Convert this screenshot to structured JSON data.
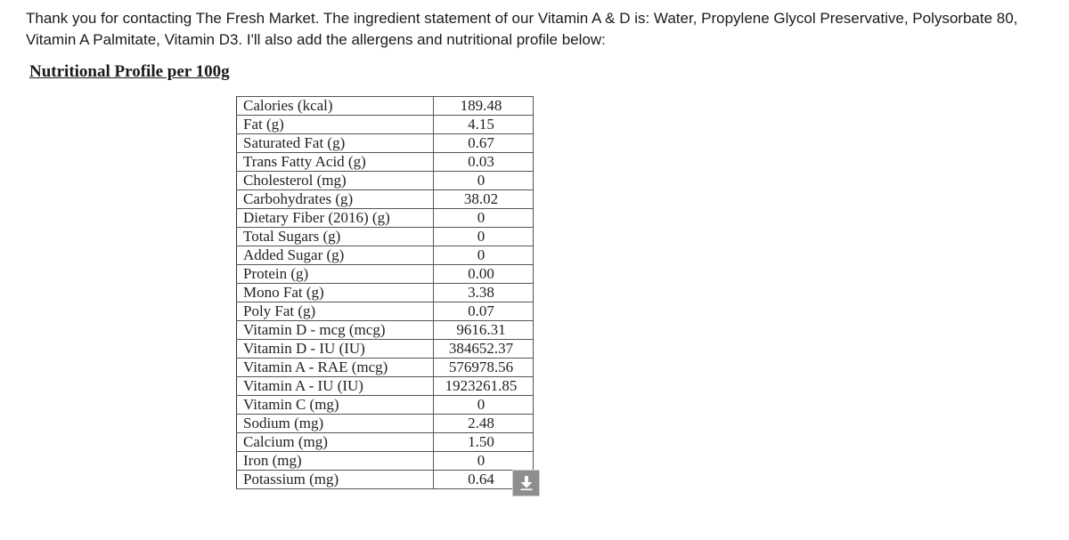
{
  "message": {
    "line1": "Thank you for contacting The Fresh Market. The ingredient statement of our Vitamin A & D is: Water, Propylene Glycol Preservative, Polysorbate 80,",
    "line2": "Vitamin A Palmitate, Vitamin D3. I'll also add the allergens and nutritional profile below:"
  },
  "profile": {
    "heading": "Nutritional Profile per 100g",
    "rows": [
      {
        "label": "Calories (kcal)",
        "value": "189.48"
      },
      {
        "label": "Fat (g)",
        "value": "4.15"
      },
      {
        "label": "Saturated Fat (g)",
        "value": "0.67"
      },
      {
        "label": "Trans Fatty Acid (g)",
        "value": "0.03"
      },
      {
        "label": "Cholesterol (mg)",
        "value": "0"
      },
      {
        "label": "Carbohydrates (g)",
        "value": "38.02"
      },
      {
        "label": "Dietary Fiber (2016) (g)",
        "value": "0"
      },
      {
        "label": "Total Sugars (g)",
        "value": "0"
      },
      {
        "label": "Added Sugar (g)",
        "value": "0"
      },
      {
        "label": "Protein (g)",
        "value": "0.00"
      },
      {
        "label": "Mono Fat (g)",
        "value": "3.38"
      },
      {
        "label": "Poly Fat (g)",
        "value": "0.07"
      },
      {
        "label": "Vitamin D - mcg (mcg)",
        "value": "9616.31"
      },
      {
        "label": "Vitamin D - IU (IU)",
        "value": "384652.37"
      },
      {
        "label": "Vitamin A - RAE (mcg)",
        "value": "576978.56"
      },
      {
        "label": "Vitamin A - IU (IU)",
        "value": "1923261.85"
      },
      {
        "label": "Vitamin C (mg)",
        "value": "0"
      },
      {
        "label": "Sodium (mg)",
        "value": "2.48"
      },
      {
        "label": "Calcium (mg)",
        "value": "1.50"
      },
      {
        "label": "Iron (mg)",
        "value": "0"
      },
      {
        "label": "Potassium (mg)",
        "value": "0.64"
      }
    ]
  },
  "download_button": {
    "icon": "download-arrow-icon",
    "color": "#8d8d8d"
  }
}
